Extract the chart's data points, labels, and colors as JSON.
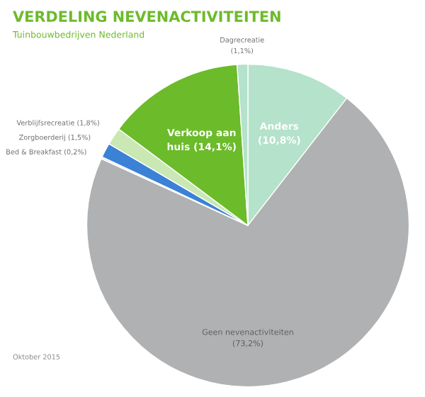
{
  "chart_data": {
    "type": "pie",
    "title": "VERDELING NEVENACTIVITEITEN",
    "subtitle": "Tuinbouwbedrijven Nederland",
    "categories": [
      "Anders",
      "Geen nevenactiviteiten",
      "Bed & Breakfast",
      "Zorgboerderij",
      "Verblijfsrecreatie",
      "Verkoop aan huis",
      "Dagrecreatie"
    ],
    "values": [
      10.8,
      73.2,
      0.2,
      1.5,
      1.8,
      14.1,
      1.1
    ],
    "value_labels": [
      "(10,8%)",
      "(73,2%)",
      "(0,2%)",
      "(1,5%)",
      "(1,8%)",
      "(14,1%)",
      "(1,1%)"
    ],
    "colors": [
      "#b4e2ca",
      "#b0b1b3",
      "#e6e6e6",
      "#3b82d6",
      "#c9e8b4",
      "#6cbb2b",
      "#b4e2ca"
    ],
    "annotations": [
      "Oktober 2015"
    ]
  }
}
